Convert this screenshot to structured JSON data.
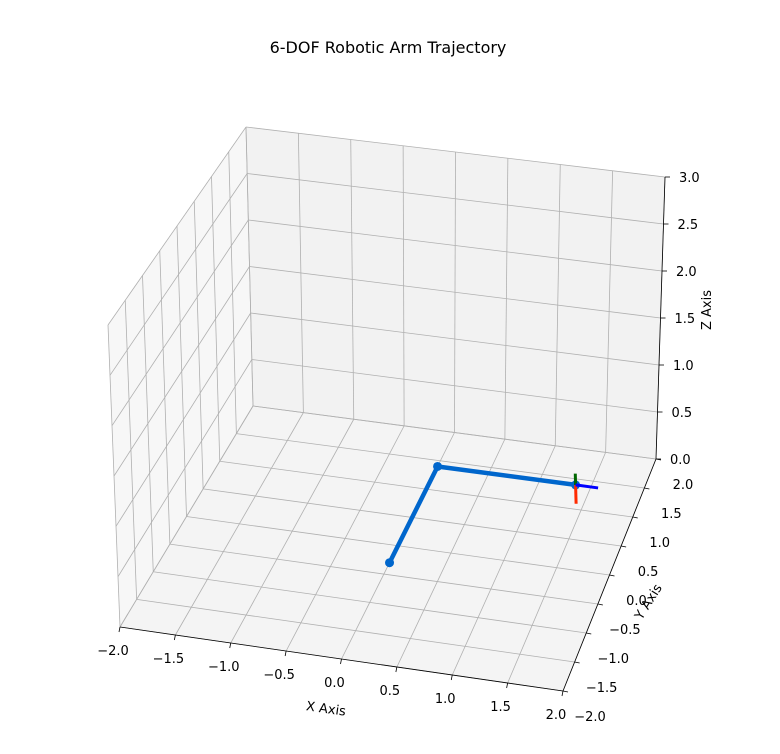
{
  "chart_data": {
    "type": "line3d",
    "title": "6-DOF Robotic Arm Trajectory",
    "xlabel": "X Axis",
    "ylabel": "Y Axis",
    "zlabel": "Z Axis",
    "xlim": [
      -2.0,
      2.0
    ],
    "ylim": [
      -2.0,
      2.0
    ],
    "zlim": [
      0.0,
      3.0
    ],
    "grid": true,
    "xticks": [
      "−2.0",
      "−1.5",
      "−1.0",
      "−0.5",
      "0.0",
      "0.5",
      "1.0",
      "1.5",
      "2.0"
    ],
    "yticks": [
      "−2.0",
      "−1.5",
      "−1.0",
      "−0.5",
      "0.0",
      "0.5",
      "1.0",
      "1.5",
      "2.0"
    ],
    "zticks": [
      "0.0",
      "0.5",
      "1.0",
      "1.5",
      "2.0",
      "2.5",
      "3.0"
    ],
    "arm": {
      "color": "#0066cc",
      "joints": [
        {
          "x": 0.0,
          "y": -0.3,
          "z": 0.0
        },
        {
          "x": 0.0,
          "y": 1.4,
          "z": 0.0
        },
        {
          "x": 1.35,
          "y": 1.4,
          "z": 0.0
        }
      ]
    },
    "end_effector_frame": {
      "origin": {
        "x": 1.35,
        "y": 1.4,
        "z": 0.0
      },
      "axes": [
        {
          "name": "x",
          "color": "#ff2a00",
          "dx": 0.0,
          "dy": 0.0,
          "dz": -0.2
        },
        {
          "name": "y",
          "color": "#006600",
          "dx": 0.0,
          "dy": 0.0,
          "dz": 0.12
        },
        {
          "name": "z",
          "color": "#0000ff",
          "dx": 0.22,
          "dy": 0.0,
          "dz": 0.0
        }
      ]
    }
  }
}
